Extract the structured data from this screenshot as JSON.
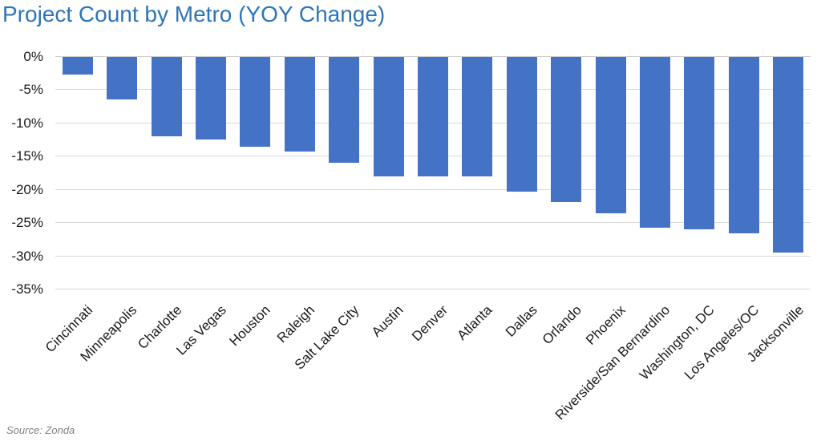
{
  "chart": {
    "title_color": "#2e75b6",
    "bar_color": "#4472c4",
    "gridline_color": "#d9d9d9",
    "background": "#ffffff"
  },
  "chart_data": {
    "type": "bar",
    "title": "Project Count by Metro (YOY Change)",
    "source": "Source: Zonda",
    "xlabel": "",
    "ylabel": "",
    "ylim": [
      -35,
      0
    ],
    "ytick_step": 5,
    "ytick_labels": [
      "0%",
      "-5%",
      "-10%",
      "-15%",
      "-20%",
      "-25%",
      "-30%",
      "-35%"
    ],
    "grid": true,
    "legend": false,
    "bar_color": "#4472c4",
    "categories": [
      "Cincinnati",
      "Minneapolis",
      "Charlotte",
      "Las Vegas",
      "Houston",
      "Raleigh",
      "Salt Lake City",
      "Austin",
      "Denver",
      "Atlanta",
      "Dallas",
      "Orlando",
      "Phoenix",
      "Riverside/San Bernardino",
      "Washington, DC",
      "Los Angeles/OC",
      "Jacksonville"
    ],
    "values": [
      -2.7,
      -6.4,
      -12.0,
      -12.4,
      -13.5,
      -14.3,
      -15.9,
      -18.0,
      -18.0,
      -18.0,
      -20.3,
      -21.8,
      -23.5,
      -25.7,
      -25.9,
      -26.6,
      -29.4
    ]
  }
}
